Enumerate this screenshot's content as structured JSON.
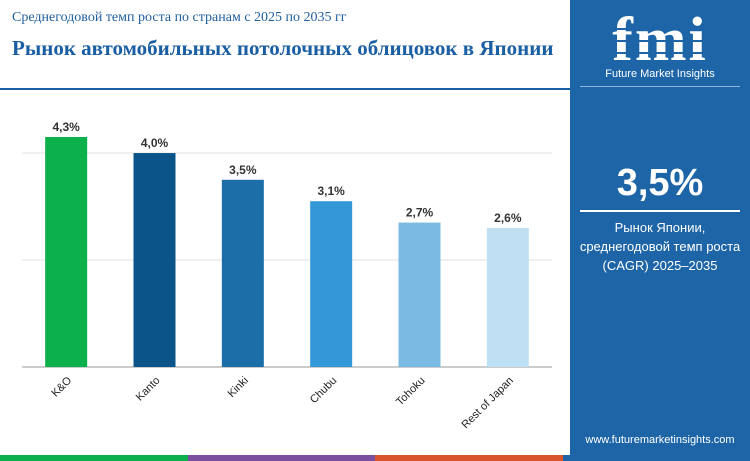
{
  "header": {
    "subtitle": "Среднегодовой темп роста по странам с 2025 по 2035 гг",
    "title": "Рынок автомобильных потолочных облицовок в Японии"
  },
  "panel": {
    "logo_text": "fmi",
    "brand": "Future Market Insights",
    "kpi_value": "3,5%",
    "kpi_line1": "Рынок Японии,",
    "kpi_line2": "среднегодовой темп роста",
    "kpi_line3": "(CAGR) 2025–2035",
    "website": "www.futuremarketinsights.com",
    "color": "#1d65a6"
  },
  "chart_data": {
    "type": "bar",
    "categories": [
      "K&O",
      "Kanto",
      "Kinki",
      "Chubu",
      "Tohoku",
      "Rest of Japan"
    ],
    "values": [
      4.3,
      4.0,
      3.5,
      3.1,
      2.7,
      2.6
    ],
    "value_labels": [
      "4,3%",
      "4,0%",
      "3,5%",
      "3,1%",
      "2,7%",
      "2,6%"
    ],
    "colors": [
      "#0db14b",
      "#0a5489",
      "#1b6ea8",
      "#3498d8",
      "#7bbbe3",
      "#bfe0f3"
    ],
    "ylim": [
      0,
      4.3
    ],
    "grid": true,
    "xlabel": "",
    "ylabel": ""
  },
  "bottom_strip_colors": [
    "#0db14b",
    "#7a4fa0",
    "#d9532b",
    "#1d65a6"
  ]
}
